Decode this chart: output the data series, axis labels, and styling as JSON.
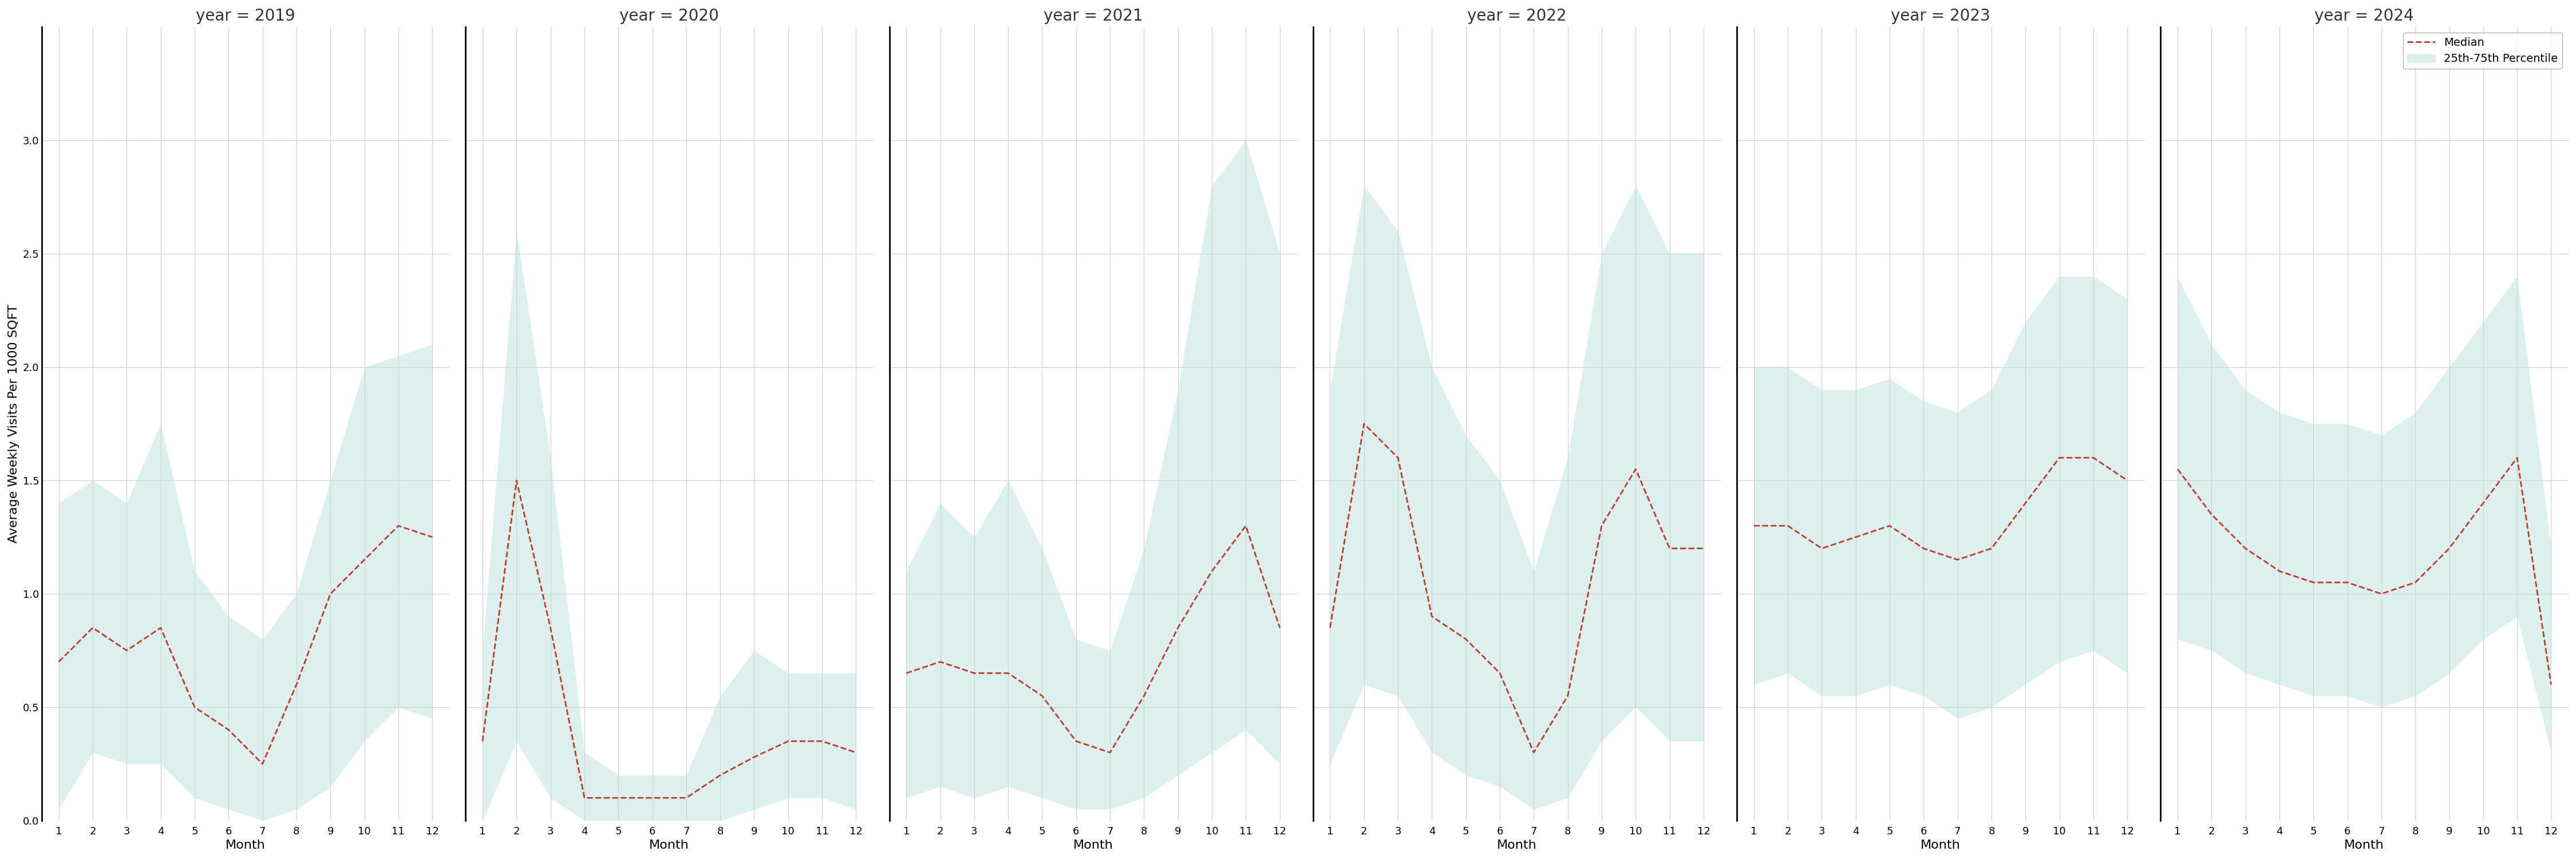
{
  "years": [
    2019,
    2020,
    2021,
    2022,
    2023,
    2024
  ],
  "months": [
    1,
    2,
    3,
    4,
    5,
    6,
    7,
    8,
    9,
    10,
    11,
    12
  ],
  "median": {
    "2019": [
      0.7,
      0.85,
      0.75,
      0.85,
      0.5,
      0.4,
      0.25,
      0.6,
      1.0,
      1.15,
      1.3,
      1.25
    ],
    "2020": [
      0.35,
      1.5,
      0.85,
      0.1,
      0.1,
      0.1,
      0.1,
      0.2,
      0.28,
      0.35,
      0.35,
      0.3
    ],
    "2021": [
      0.65,
      0.7,
      0.65,
      0.65,
      0.55,
      0.35,
      0.3,
      0.55,
      0.85,
      1.1,
      1.3,
      0.85
    ],
    "2022": [
      0.85,
      1.75,
      1.6,
      0.9,
      0.8,
      0.65,
      0.3,
      0.55,
      1.3,
      1.55,
      1.2,
      1.2
    ],
    "2023": [
      1.3,
      1.3,
      1.2,
      1.25,
      1.3,
      1.2,
      1.15,
      1.2,
      1.4,
      1.6,
      1.6,
      1.5
    ],
    "2024": [
      1.55,
      1.35,
      1.2,
      1.1,
      1.05,
      1.05,
      1.0,
      1.05,
      1.2,
      1.4,
      1.6,
      0.6
    ]
  },
  "p25": {
    "2019": [
      0.05,
      0.3,
      0.25,
      0.25,
      0.1,
      0.05,
      0.0,
      0.05,
      0.15,
      0.35,
      0.5,
      0.45
    ],
    "2020": [
      0.0,
      0.35,
      0.1,
      0.0,
      0.0,
      0.0,
      0.0,
      0.0,
      0.05,
      0.1,
      0.1,
      0.05
    ],
    "2021": [
      0.1,
      0.15,
      0.1,
      0.15,
      0.1,
      0.05,
      0.05,
      0.1,
      0.2,
      0.3,
      0.4,
      0.25
    ],
    "2022": [
      0.25,
      0.6,
      0.55,
      0.3,
      0.2,
      0.15,
      0.05,
      0.1,
      0.35,
      0.5,
      0.35,
      0.35
    ],
    "2023": [
      0.6,
      0.65,
      0.55,
      0.55,
      0.6,
      0.55,
      0.45,
      0.5,
      0.6,
      0.7,
      0.75,
      0.65
    ],
    "2024": [
      0.8,
      0.75,
      0.65,
      0.6,
      0.55,
      0.55,
      0.5,
      0.55,
      0.65,
      0.8,
      0.9,
      0.3
    ]
  },
  "p75": {
    "2019": [
      1.4,
      1.5,
      1.4,
      1.75,
      1.1,
      0.9,
      0.8,
      1.0,
      1.5,
      2.0,
      2.05,
      2.1
    ],
    "2020": [
      0.75,
      2.6,
      1.6,
      0.3,
      0.2,
      0.2,
      0.2,
      0.55,
      0.75,
      0.65,
      0.65,
      0.65
    ],
    "2021": [
      1.1,
      1.4,
      1.25,
      1.5,
      1.2,
      0.8,
      0.75,
      1.2,
      1.9,
      2.8,
      3.0,
      2.5
    ],
    "2022": [
      1.9,
      2.8,
      2.6,
      2.0,
      1.7,
      1.5,
      1.1,
      1.6,
      2.5,
      2.8,
      2.5,
      2.5
    ],
    "2023": [
      2.0,
      2.0,
      1.9,
      1.9,
      1.95,
      1.85,
      1.8,
      1.9,
      2.2,
      2.4,
      2.4,
      2.3
    ],
    "2024": [
      2.4,
      2.1,
      1.9,
      1.8,
      1.75,
      1.75,
      1.7,
      1.8,
      2.0,
      2.2,
      2.4,
      1.2
    ]
  },
  "fill_color": "#b2dfdb",
  "fill_alpha": 0.45,
  "line_color": "#c0392b",
  "line_style": "--",
  "line_width": 2.0,
  "ylabel": "Average Weekly Visits Per 1000 SQFT",
  "xlabel": "Month",
  "ylim": [
    0.0,
    3.5
  ],
  "yticks": [
    0.0,
    0.5,
    1.0,
    1.5,
    2.0,
    2.5,
    3.0
  ],
  "xticks": [
    1,
    2,
    3,
    4,
    5,
    6,
    7,
    8,
    9,
    10,
    11,
    12
  ],
  "legend_labels": [
    "Median",
    "25th-75th Percentile"
  ],
  "background_color": "#ffffff",
  "grid_color": "#cccccc"
}
